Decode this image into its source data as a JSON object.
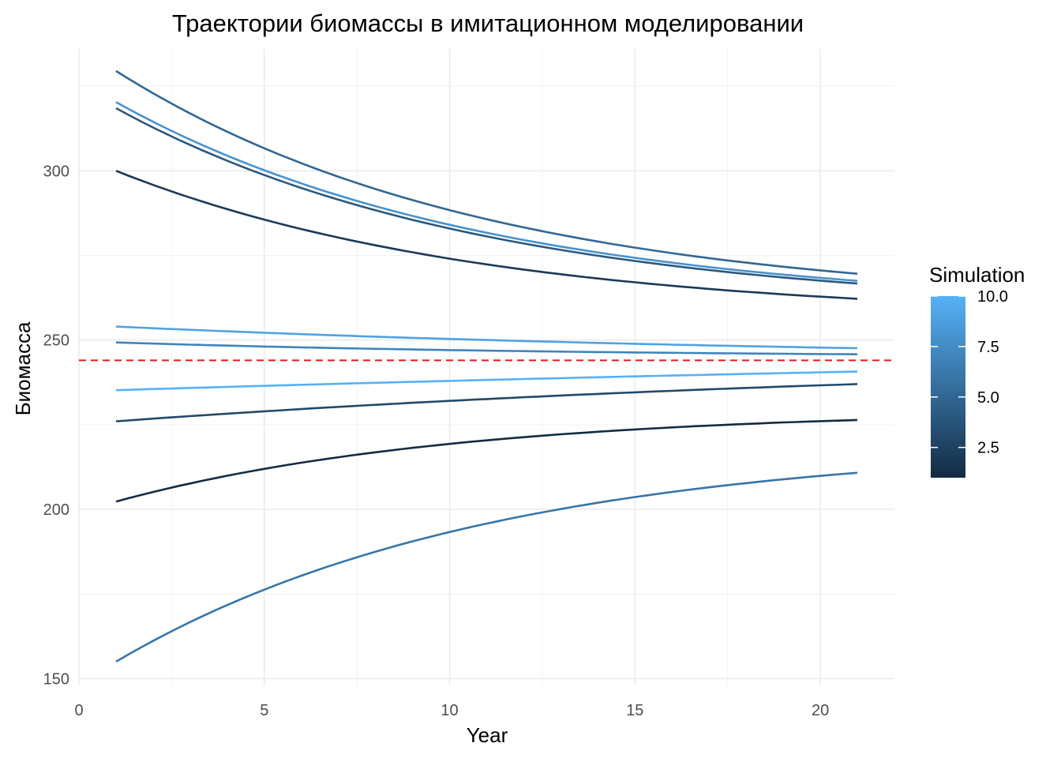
{
  "chart_data": {
    "type": "line",
    "title": "Траектории биомассы в имитационном моделировании",
    "xlabel": "Year",
    "ylabel": "Биомасса",
    "xlim": [
      0,
      22
    ],
    "ylim": [
      148,
      336
    ],
    "x_ticks": [
      0,
      5,
      10,
      15,
      20
    ],
    "y_ticks": [
      150,
      200,
      250,
      300
    ],
    "grid": true,
    "x": [
      1,
      21
    ],
    "reference_line": {
      "y": 244,
      "color": "#e31a1c",
      "style": "dashed"
    },
    "legend": {
      "title": "Simulation",
      "placement": "right",
      "type": "colorbar",
      "range": [
        1,
        10
      ],
      "breaks": [
        2.5,
        5.0,
        7.5,
        10.0
      ],
      "break_labels": [
        "2.5",
        "5.0",
        "7.5",
        "10.0"
      ],
      "low_color": "#132b43",
      "high_color": "#56b1f7"
    },
    "series": [
      {
        "sim": 1,
        "start": 202.3,
        "end": 226.4,
        "curve": 0.11
      },
      {
        "sim": 2,
        "start": 300.0,
        "end": 262.2,
        "curve": 0.1
      },
      {
        "sim": 3,
        "start": 226.0,
        "end": 237.0,
        "curve": 0.04
      },
      {
        "sim": 4,
        "start": 318.5,
        "end": 266.7,
        "curve": 0.1
      },
      {
        "sim": 5,
        "start": 329.5,
        "end": 269.6,
        "curve": 0.1
      },
      {
        "sim": 6,
        "start": 155.0,
        "end": 210.8,
        "curve": 0.1
      },
      {
        "sim": 7,
        "start": 249.3,
        "end": 245.8,
        "curve": 0.08
      },
      {
        "sim": 8,
        "start": 320.3,
        "end": 267.5,
        "curve": 0.1
      },
      {
        "sim": 9,
        "start": 254.0,
        "end": 247.6,
        "curve": 0.05
      },
      {
        "sim": 10,
        "start": 235.2,
        "end": 240.7,
        "curve": 0.02
      }
    ]
  }
}
